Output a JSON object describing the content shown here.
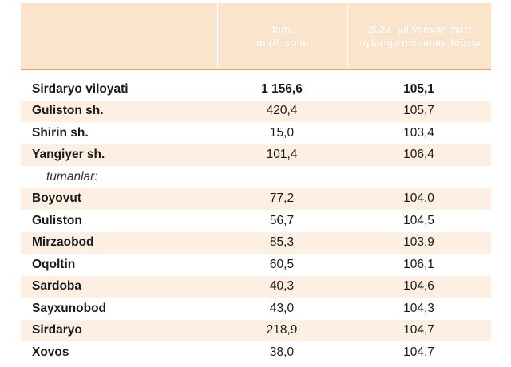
{
  "header": {
    "col1": "",
    "col2_line1": "Jami,",
    "col2_line2": "mlrd. so‘m",
    "col3_line1": "2023- yil yanvar-mart",
    "col3_line2_prefix": "oylariga nisbatan,",
    "col3_line2_italic": "foizda"
  },
  "rows": [
    {
      "name": "Sirdaryo viloyati",
      "total": "1 156,6",
      "percent": "105,1"
    },
    {
      "name": "Guliston  sh.",
      "total": "420,4",
      "percent": "105,7"
    },
    {
      "name": "Shirin sh.",
      "total": "15,0",
      "percent": "103,4"
    },
    {
      "name": "Yangiyer sh.",
      "total": "101,4",
      "percent": "106,4"
    },
    {
      "name": "tumanlar:",
      "total": "",
      "percent": ""
    },
    {
      "name": "Boyovut",
      "total": "77,2",
      "percent": "104,0"
    },
    {
      "name": "Guliston",
      "total": "56,7",
      "percent": "104,5"
    },
    {
      "name": "Mirzaobod",
      "total": "85,3",
      "percent": "103,9"
    },
    {
      "name": "Oqoltin",
      "total": "60,5",
      "percent": "106,1"
    },
    {
      "name": "Sardoba",
      "total": "40,3",
      "percent": "104,6"
    },
    {
      "name": "Sayxunobod",
      "total": "43,0",
      "percent": "104,3"
    },
    {
      "name": "Sirdaryo",
      "total": "218,9",
      "percent": "104,7"
    },
    {
      "name": "Xovos",
      "total": "38,0",
      "percent": "104,7"
    }
  ],
  "colors": {
    "header_bg": "#fbe4cc",
    "row_shade": "#fdf0e2",
    "header_rule": "#e9a76a"
  }
}
